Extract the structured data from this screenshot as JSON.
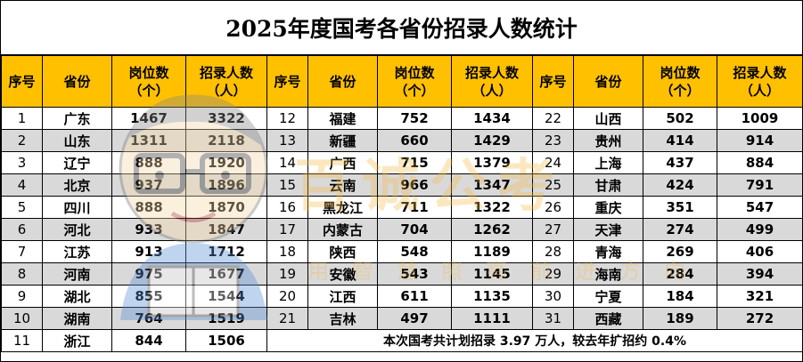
{
  "title": "2025年度国考各省份招录人数统计",
  "headers": {
    "seq": "序号",
    "province": "省份",
    "positions_line1": "岗位数",
    "positions_line2": "（个）",
    "recruits_line1": "招录人数",
    "recruits_line2": "（人）"
  },
  "rows": [
    [
      {
        "seq": "1",
        "province": "广东",
        "positions": "1467",
        "recruits": "3322"
      },
      {
        "seq": "12",
        "province": "福建",
        "positions": "752",
        "recruits": "1434"
      },
      {
        "seq": "22",
        "province": "山西",
        "positions": "502",
        "recruits": "1009"
      }
    ],
    [
      {
        "seq": "2",
        "province": "山东",
        "positions": "1311",
        "recruits": "2118"
      },
      {
        "seq": "13",
        "province": "新疆",
        "positions": "660",
        "recruits": "1429"
      },
      {
        "seq": "23",
        "province": "贵州",
        "positions": "414",
        "recruits": "914"
      }
    ],
    [
      {
        "seq": "3",
        "province": "辽宁",
        "positions": "888",
        "recruits": "1920"
      },
      {
        "seq": "14",
        "province": "广西",
        "positions": "715",
        "recruits": "1379"
      },
      {
        "seq": "24",
        "province": "上海",
        "positions": "437",
        "recruits": "884"
      }
    ],
    [
      {
        "seq": "4",
        "province": "北京",
        "positions": "937",
        "recruits": "1896"
      },
      {
        "seq": "15",
        "province": "云南",
        "positions": "966",
        "recruits": "1347"
      },
      {
        "seq": "25",
        "province": "甘肃",
        "positions": "424",
        "recruits": "791"
      }
    ],
    [
      {
        "seq": "5",
        "province": "四川",
        "positions": "888",
        "recruits": "1870"
      },
      {
        "seq": "16",
        "province": "黑龙江",
        "positions": "711",
        "recruits": "1322"
      },
      {
        "seq": "26",
        "province": "重庆",
        "positions": "351",
        "recruits": "547"
      }
    ],
    [
      {
        "seq": "6",
        "province": "河北",
        "positions": "933",
        "recruits": "1847"
      },
      {
        "seq": "17",
        "province": "内蒙古",
        "positions": "704",
        "recruits": "1262"
      },
      {
        "seq": "27",
        "province": "天津",
        "positions": "274",
        "recruits": "499"
      }
    ],
    [
      {
        "seq": "7",
        "province": "江苏",
        "positions": "913",
        "recruits": "1712"
      },
      {
        "seq": "18",
        "province": "陕西",
        "positions": "548",
        "recruits": "1189"
      },
      {
        "seq": "28",
        "province": "青海",
        "positions": "269",
        "recruits": "406"
      }
    ],
    [
      {
        "seq": "8",
        "province": "河南",
        "positions": "975",
        "recruits": "1677"
      },
      {
        "seq": "19",
        "province": "安徽",
        "positions": "543",
        "recruits": "1145"
      },
      {
        "seq": "29",
        "province": "海南",
        "positions": "284",
        "recruits": "394"
      }
    ],
    [
      {
        "seq": "9",
        "province": "湖北",
        "positions": "855",
        "recruits": "1544"
      },
      {
        "seq": "20",
        "province": "江西",
        "positions": "611",
        "recruits": "1135"
      },
      {
        "seq": "30",
        "province": "宁夏",
        "positions": "184",
        "recruits": "321"
      }
    ],
    [
      {
        "seq": "10",
        "province": "湖南",
        "positions": "764",
        "recruits": "1519"
      },
      {
        "seq": "21",
        "province": "吉林",
        "positions": "497",
        "recruits": "1111"
      },
      {
        "seq": "31",
        "province": "西藏",
        "positions": "189",
        "recruits": "272"
      }
    ]
  ],
  "last_row": {
    "seq": "11",
    "province": "浙江",
    "positions": "844",
    "recruits": "1506"
  },
  "note": "本次国考共计划招录 3.97 万人，较去年扩招约 0.4%",
  "watermark": {
    "brand": "百诚公考",
    "slogan": "用智慧照亮前进方向"
  },
  "colors": {
    "header_bg": "#FFC000",
    "shade_bg": "#d9d9d9",
    "watermark": "#F5B942"
  }
}
